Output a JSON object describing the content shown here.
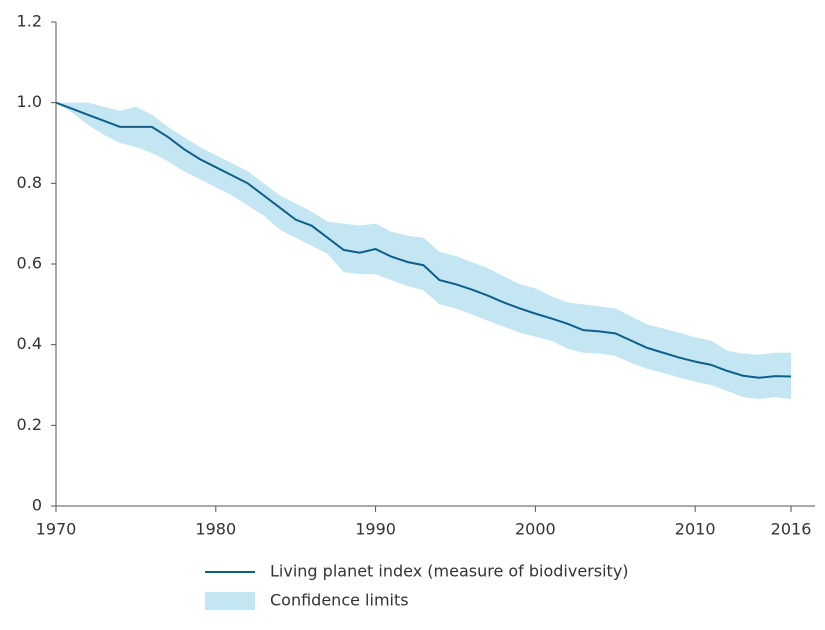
{
  "chart_data": {
    "type": "line_band",
    "x": [
      1970,
      1971,
      1972,
      1973,
      1974,
      1975,
      1976,
      1977,
      1978,
      1979,
      1980,
      1981,
      1982,
      1983,
      1984,
      1985,
      1986,
      1987,
      1988,
      1989,
      1990,
      1991,
      1992,
      1993,
      1994,
      1995,
      1996,
      1997,
      1998,
      1999,
      2000,
      2001,
      2002,
      2003,
      2004,
      2005,
      2006,
      2007,
      2008,
      2009,
      2010,
      2011,
      2012,
      2013,
      2014,
      2015,
      2016
    ],
    "series": [
      {
        "name": "Living planet index (measure of biodiversity)",
        "color": "#0d5f8c",
        "values": [
          1.0,
          0.985,
          0.97,
          0.955,
          0.94,
          0.94,
          0.94,
          0.915,
          0.885,
          0.86,
          0.84,
          0.82,
          0.8,
          0.77,
          0.74,
          0.71,
          0.695,
          0.665,
          0.635,
          0.628,
          0.637,
          0.618,
          0.605,
          0.597,
          0.56,
          0.55,
          0.537,
          0.522,
          0.505,
          0.49,
          0.477,
          0.465,
          0.452,
          0.436,
          0.433,
          0.428,
          0.41,
          0.392,
          0.38,
          0.368,
          0.358,
          0.35,
          0.335,
          0.323,
          0.318,
          0.322,
          0.321
        ]
      }
    ],
    "band": {
      "name": "Confidence limits",
      "color": "#c4e6f3",
      "upper": [
        1.0,
        1.0,
        1.0,
        0.99,
        0.98,
        0.99,
        0.97,
        0.94,
        0.915,
        0.89,
        0.87,
        0.85,
        0.83,
        0.8,
        0.77,
        0.75,
        0.73,
        0.705,
        0.7,
        0.695,
        0.7,
        0.68,
        0.67,
        0.665,
        0.63,
        0.62,
        0.605,
        0.59,
        0.57,
        0.55,
        0.54,
        0.52,
        0.505,
        0.5,
        0.495,
        0.49,
        0.47,
        0.45,
        0.44,
        0.43,
        0.418,
        0.41,
        0.385,
        0.378,
        0.375,
        0.38,
        0.38
      ],
      "lower": [
        1.0,
        0.975,
        0.945,
        0.92,
        0.9,
        0.89,
        0.875,
        0.855,
        0.83,
        0.81,
        0.79,
        0.77,
        0.745,
        0.72,
        0.685,
        0.665,
        0.645,
        0.625,
        0.58,
        0.575,
        0.575,
        0.56,
        0.545,
        0.535,
        0.5,
        0.49,
        0.475,
        0.46,
        0.445,
        0.43,
        0.42,
        0.41,
        0.39,
        0.38,
        0.378,
        0.372,
        0.355,
        0.34,
        0.33,
        0.318,
        0.308,
        0.3,
        0.285,
        0.27,
        0.265,
        0.27,
        0.265
      ]
    },
    "xlim": [
      1970,
      2017.5
    ],
    "xticks": [
      1970,
      1980,
      1990,
      2000,
      2010,
      2016
    ],
    "ylim": [
      0,
      1.2
    ],
    "yticks": [
      0,
      0.2,
      0.4,
      {
        "value": 0.6,
        "label": "0.6"
      },
      0.8,
      {
        "value": 1,
        "label": "1.0"
      },
      1.2
    ]
  }
}
